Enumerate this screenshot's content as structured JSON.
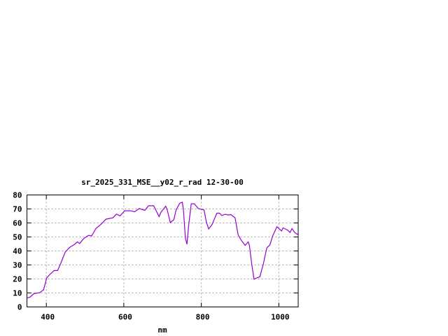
{
  "chart_data": {
    "type": "line",
    "title": "sr_2025_331_MSE__y02_r_rad 12-30-00",
    "xlabel": "nm",
    "ylabel": "",
    "xlim": [
      350,
      1050
    ],
    "ylim": [
      0,
      80
    ],
    "xticks": [
      400,
      600,
      800,
      1000
    ],
    "yticks": [
      0,
      10,
      20,
      30,
      40,
      50,
      60,
      70,
      80
    ],
    "grid": true,
    "line_color": "#9400d3",
    "series": [
      {
        "x": [
          350,
          352,
          358,
          368,
          383,
          393,
          401,
          410,
          420,
          429,
          437,
          449,
          461,
          473,
          480,
          486,
          496,
          509,
          517,
          528,
          542,
          554,
          572,
          581,
          590,
          602,
          617,
          628,
          640,
          654,
          664,
          677,
          691,
          696,
          708,
          712,
          720,
          729,
          735,
          744,
          751,
          754,
          759,
          763,
          767,
          774,
          782,
          792,
          807,
          813,
          819,
          828,
          840,
          847,
          853,
          861,
          869,
          876,
          887,
          895,
          903,
          913,
          921,
          924,
          930,
          936,
          945,
          951,
          960,
          969,
          977,
          984,
          995,
          1007,
          1011,
          1023,
          1029,
          1034,
          1041,
          1047,
          1050
        ],
        "y": [
          6.5,
          6.5,
          7,
          9.5,
          10.2,
          12.3,
          20.7,
          23.5,
          26,
          26,
          31,
          39.3,
          42.7,
          44.7,
          46.5,
          45.3,
          48.7,
          51.2,
          50.7,
          56,
          59.3,
          62.7,
          63.7,
          66.3,
          65,
          68.7,
          68.7,
          68,
          70.3,
          69,
          72.3,
          72.3,
          64.5,
          67.7,
          72,
          69.3,
          60.3,
          62.3,
          69.3,
          74,
          74.8,
          69,
          49,
          44.8,
          57.3,
          73.7,
          73.7,
          70.3,
          69.3,
          60.7,
          55.7,
          59,
          67,
          67,
          65.3,
          66.2,
          65.7,
          66,
          63.7,
          51.5,
          47.7,
          44,
          46.5,
          44,
          30.7,
          19.8,
          21,
          21.5,
          30.7,
          42.3,
          44.3,
          50.7,
          57.3,
          54.3,
          56.5,
          54.8,
          53.2,
          56,
          53.2,
          52,
          52
        ]
      }
    ]
  }
}
